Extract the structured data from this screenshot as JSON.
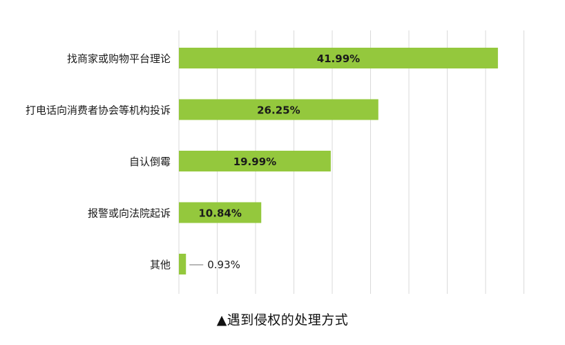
{
  "caption": "▲遇到侵权的处理方式",
  "colors": {
    "bar": "#94c83d",
    "grid": "#d9d9d9",
    "text": "#1a1a1a",
    "leader": "#8c8c8c"
  },
  "chart_data": {
    "type": "bar",
    "orientation": "horizontal",
    "categories": [
      "找商家或购物平台理论",
      "打电话向消费者协会等机构投诉",
      "自认倒霉",
      "报警或向法院起诉",
      "其他"
    ],
    "values": [
      41.99,
      26.25,
      19.99,
      10.84,
      0.93
    ],
    "data_labels": [
      "41.99%",
      "26.25%",
      "19.99%",
      "10.84%",
      "0.93%"
    ],
    "xlim": [
      0,
      50
    ],
    "grid": true,
    "tick_labels_shown": false,
    "title": "",
    "xlabel": "",
    "ylabel": ""
  }
}
